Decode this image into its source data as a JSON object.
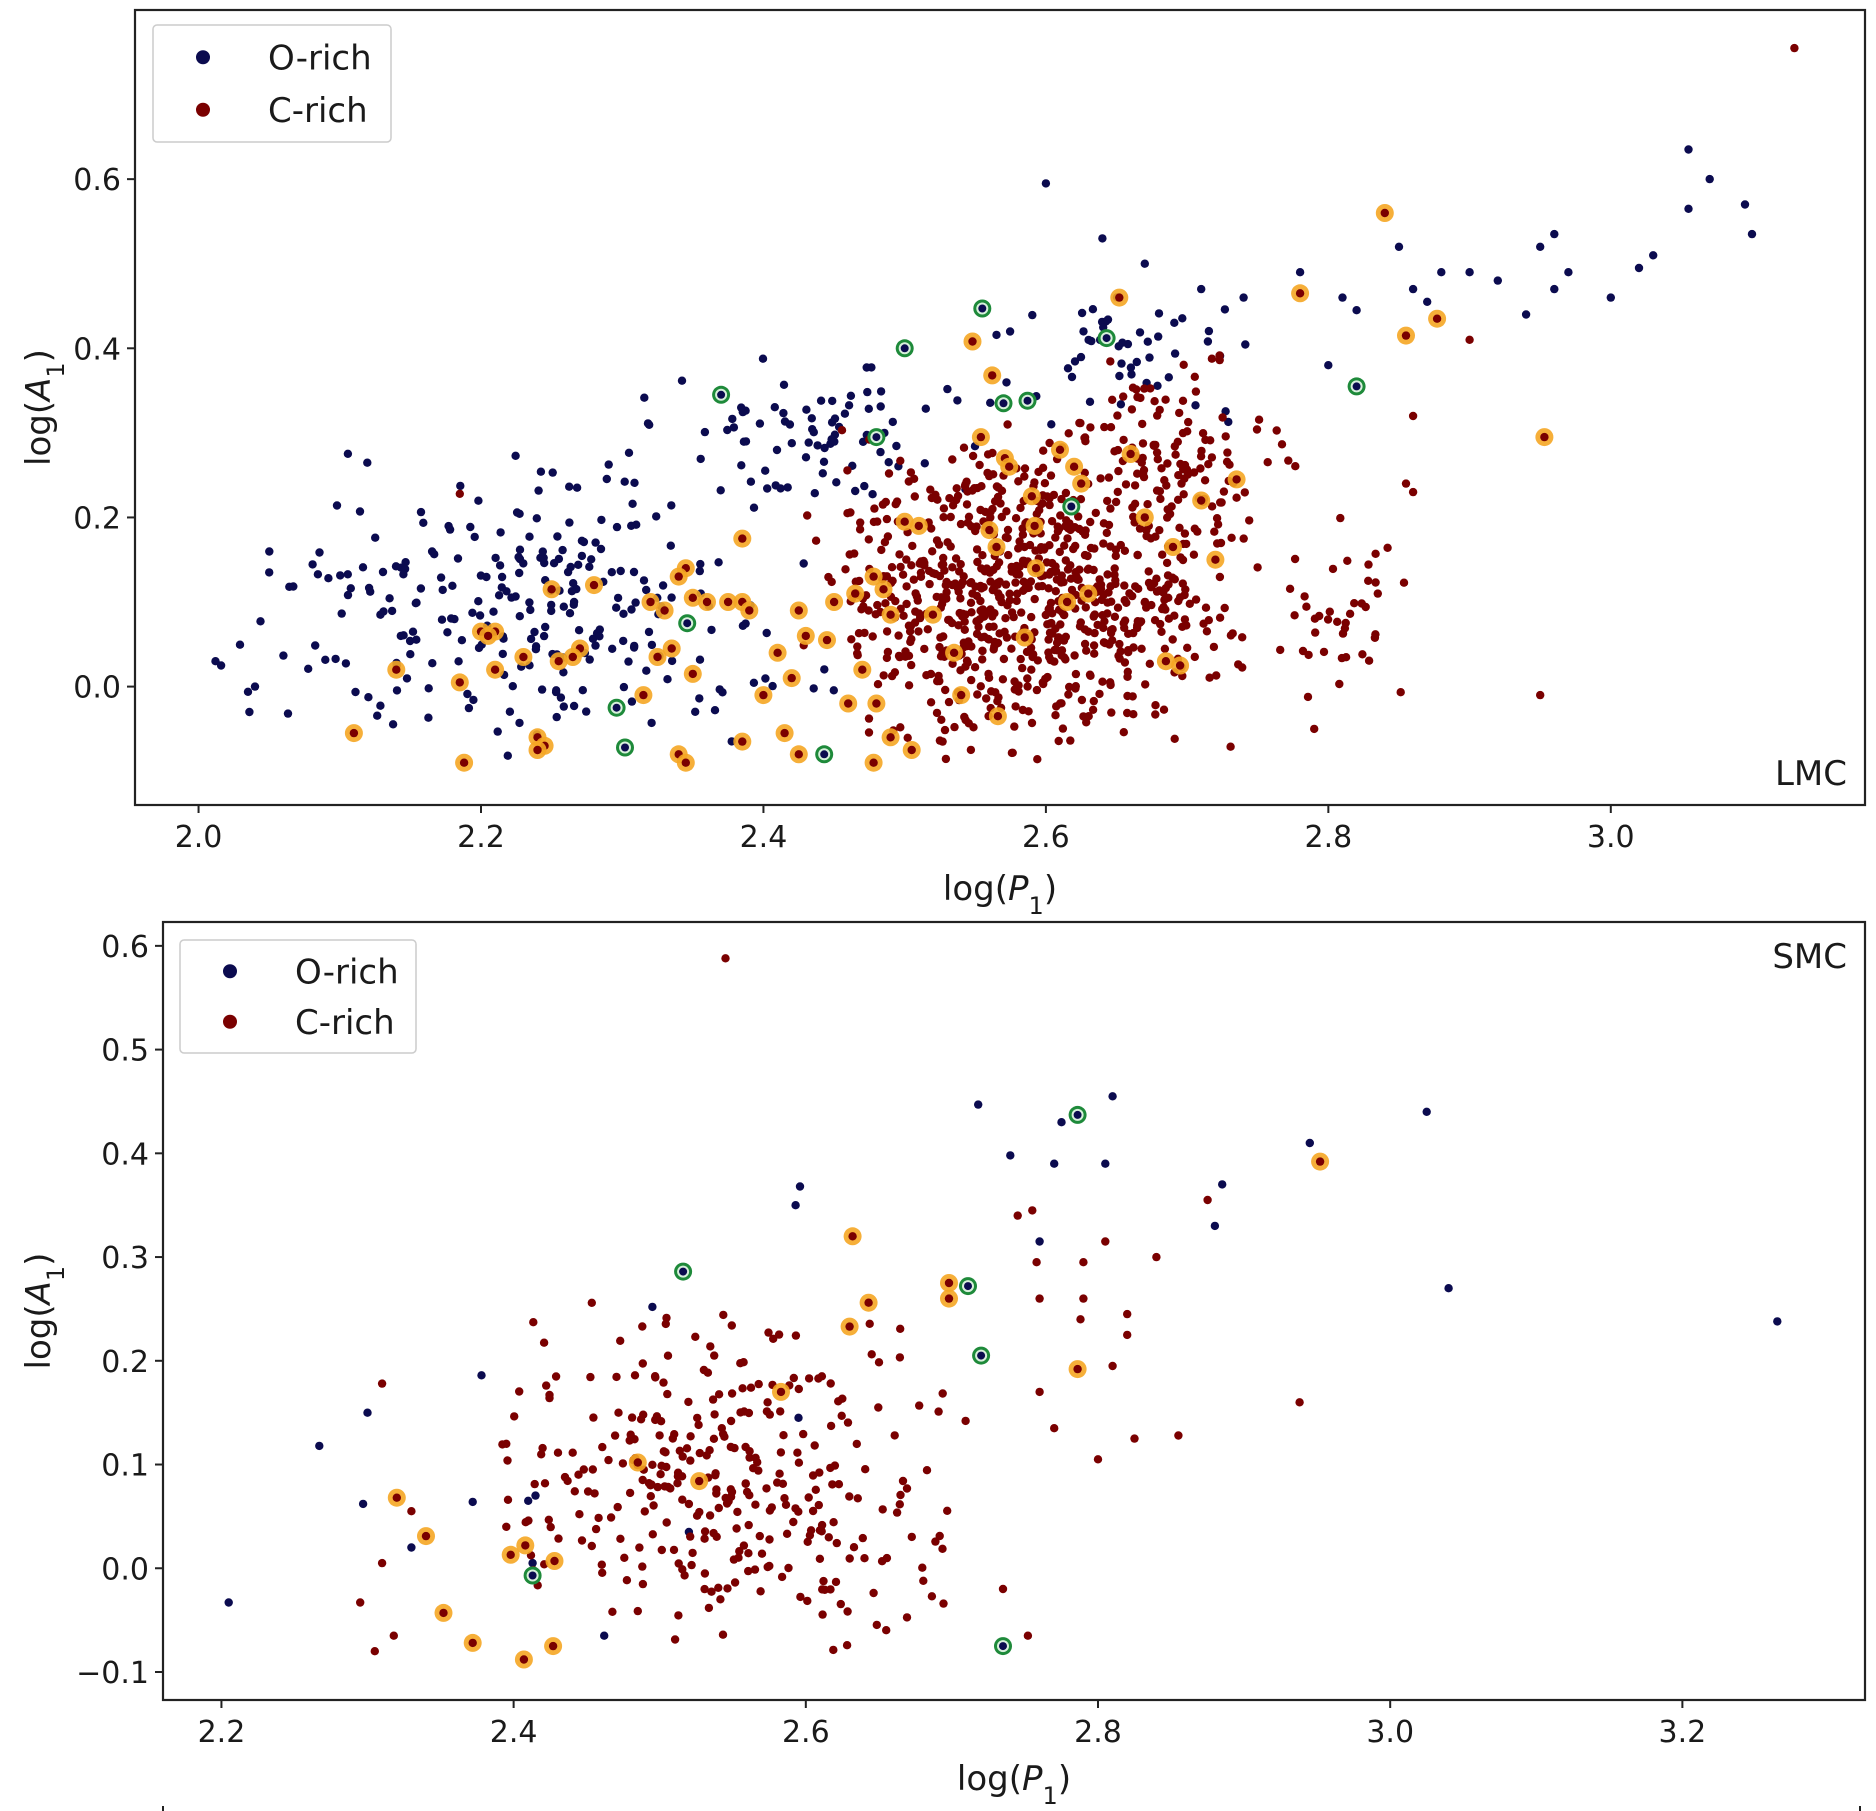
{
  "colors": {
    "o_rich": "#0b0b4f",
    "c_rich": "#7a0000",
    "highlight_orange": "#f5a623",
    "highlight_green": "#1e8a3a"
  },
  "chart_data": [
    {
      "type": "scatter",
      "panel_label": "LMC",
      "xlabel": "log(P1)",
      "ylabel": "log(A1)",
      "xlim": [
        1.955,
        3.18
      ],
      "ylim": [
        -0.14,
        0.8
      ],
      "xticks": [
        "2.0",
        "2.2",
        "2.4",
        "2.6",
        "2.8",
        "3.0"
      ],
      "xtick_values": [
        2.0,
        2.2,
        2.4,
        2.6,
        2.8,
        3.0
      ],
      "yticks": [
        "0.0",
        "0.2",
        "0.4",
        "0.6"
      ],
      "ytick_values": [
        0.0,
        0.2,
        0.4,
        0.6
      ],
      "legend": {
        "position": "top-left",
        "entries": [
          "O-rich",
          "C-rich"
        ]
      },
      "grid": false,
      "series": [
        {
          "name": "O-rich",
          "clusters": [
            {
              "x": [
                2.02,
                2.45
              ],
              "y": [
                -0.09,
                0.28
              ],
              "n": 260
            },
            {
              "x": [
                2.3,
                2.58
              ],
              "y": [
                0.2,
                0.42
              ],
              "n": 80
            },
            {
              "x": [
                2.55,
                2.78
              ],
              "y": [
                0.3,
                0.48
              ],
              "n": 50
            }
          ],
          "points": [
            [
              2.012,
              0.03
            ],
            [
              2.016,
              0.025
            ],
            [
              2.05,
              0.135
            ],
            [
              2.04,
              0.0
            ],
            [
              2.036,
              -0.03
            ],
            [
              2.6,
              0.595
            ],
            [
              2.67,
              0.5
            ],
            [
              2.64,
              0.53
            ],
            [
              2.85,
              0.52
            ],
            [
              2.92,
              0.48
            ],
            [
              2.95,
              0.52
            ],
            [
              2.96,
              0.535
            ],
            [
              2.97,
              0.49
            ],
            [
              3.02,
              0.495
            ],
            [
              3.03,
              0.51
            ],
            [
              3.055,
              0.635
            ],
            [
              3.055,
              0.565
            ],
            [
              3.07,
              0.6
            ],
            [
              3.095,
              0.57
            ],
            [
              3.1,
              0.535
            ],
            [
              2.88,
              0.49
            ],
            [
              2.87,
              0.455
            ],
            [
              2.86,
              0.47
            ],
            [
              2.9,
              0.49
            ],
            [
              2.78,
              0.49
            ],
            [
              2.81,
              0.46
            ],
            [
              2.82,
              0.445
            ],
            [
              2.8,
              0.38
            ],
            [
              2.71,
              0.47
            ],
            [
              2.74,
              0.46
            ],
            [
              2.96,
              0.47
            ],
            [
              2.94,
              0.44
            ],
            [
              3.0,
              0.46
            ]
          ]
        },
        {
          "name": "C-rich",
          "clusters": [
            {
              "x": [
                2.42,
                2.76
              ],
              "y": [
                -0.09,
                0.32
              ],
              "n": 820
            },
            {
              "x": [
                2.6,
                2.78
              ],
              "y": [
                0.2,
                0.4
              ],
              "n": 90
            },
            {
              "x": [
                2.76,
                2.86
              ],
              "y": [
                -0.05,
                0.25
              ],
              "n": 40
            }
          ],
          "points": [
            [
              3.13,
              0.755
            ],
            [
              2.185,
              0.228
            ],
            [
              2.95,
              -0.01
            ],
            [
              2.79,
              -0.05
            ],
            [
              2.9,
              0.41
            ],
            [
              2.86,
              0.23
            ],
            [
              2.855,
              0.24
            ],
            [
              2.835,
              0.11
            ],
            [
              2.86,
              0.32
            ]
          ]
        }
      ],
      "highlighted_orange": [
        [
          2.84,
          0.56
        ],
        [
          2.855,
          0.415
        ],
        [
          2.877,
          0.435
        ],
        [
          2.78,
          0.465
        ],
        [
          2.652,
          0.46
        ],
        [
          2.953,
          0.295
        ],
        [
          2.548,
          0.408
        ],
        [
          2.554,
          0.295
        ],
        [
          2.562,
          0.368
        ],
        [
          2.571,
          0.27
        ],
        [
          2.574,
          0.26
        ],
        [
          2.61,
          0.28
        ],
        [
          2.62,
          0.26
        ],
        [
          2.66,
          0.275
        ],
        [
          2.735,
          0.245
        ],
        [
          2.56,
          0.185
        ],
        [
          2.565,
          0.165
        ],
        [
          2.59,
          0.225
        ],
        [
          2.592,
          0.19
        ],
        [
          2.593,
          0.14
        ],
        [
          2.615,
          0.1
        ],
        [
          2.625,
          0.24
        ],
        [
          2.63,
          0.11
        ],
        [
          2.67,
          0.2
        ],
        [
          2.69,
          0.165
        ],
        [
          2.71,
          0.22
        ],
        [
          2.72,
          0.15
        ],
        [
          2.685,
          0.03
        ],
        [
          2.695,
          0.025
        ],
        [
          2.585,
          0.058
        ],
        [
          2.5,
          0.195
        ],
        [
          2.51,
          0.19
        ],
        [
          2.52,
          0.085
        ],
        [
          2.535,
          0.04
        ],
        [
          2.54,
          -0.01
        ],
        [
          2.566,
          -0.035
        ],
        [
          2.505,
          -0.075
        ],
        [
          2.49,
          -0.06
        ],
        [
          2.478,
          -0.09
        ],
        [
          2.45,
          0.1
        ],
        [
          2.465,
          0.11
        ],
        [
          2.478,
          0.13
        ],
        [
          2.485,
          0.115
        ],
        [
          2.49,
          0.085
        ],
        [
          2.47,
          0.02
        ],
        [
          2.46,
          -0.02
        ],
        [
          2.48,
          -0.02
        ],
        [
          2.445,
          0.055
        ],
        [
          2.425,
          0.09
        ],
        [
          2.43,
          0.06
        ],
        [
          2.41,
          0.04
        ],
        [
          2.42,
          0.01
        ],
        [
          2.4,
          -0.01
        ],
        [
          2.415,
          -0.055
        ],
        [
          2.425,
          -0.08
        ],
        [
          2.385,
          -0.065
        ],
        [
          2.385,
          0.1
        ],
        [
          2.39,
          0.09
        ],
        [
          2.375,
          0.1
        ],
        [
          2.385,
          0.175
        ],
        [
          2.36,
          0.1
        ],
        [
          2.35,
          0.105
        ],
        [
          2.345,
          0.14
        ],
        [
          2.34,
          0.13
        ],
        [
          2.33,
          0.09
        ],
        [
          2.32,
          0.1
        ],
        [
          2.335,
          0.045
        ],
        [
          2.325,
          0.035
        ],
        [
          2.35,
          0.015
        ],
        [
          2.34,
          -0.08
        ],
        [
          2.345,
          -0.09
        ],
        [
          2.315,
          -0.01
        ],
        [
          2.28,
          0.12
        ],
        [
          2.25,
          0.115
        ],
        [
          2.27,
          0.045
        ],
        [
          2.265,
          0.035
        ],
        [
          2.255,
          0.03
        ],
        [
          2.23,
          0.035
        ],
        [
          2.21,
          0.065
        ],
        [
          2.2,
          0.065
        ],
        [
          2.205,
          0.06
        ],
        [
          2.21,
          0.02
        ],
        [
          2.24,
          -0.06
        ],
        [
          2.245,
          -0.07
        ],
        [
          2.14,
          0.02
        ],
        [
          2.185,
          0.005
        ],
        [
          2.11,
          -0.055
        ],
        [
          2.188,
          -0.09
        ],
        [
          2.24,
          -0.075
        ]
      ],
      "highlighted_green": [
        [
          2.37,
          0.345
        ],
        [
          2.48,
          0.295
        ],
        [
          2.5,
          0.4
        ],
        [
          2.555,
          0.447
        ],
        [
          2.57,
          0.335
        ],
        [
          2.587,
          0.338
        ],
        [
          2.643,
          0.412
        ],
        [
          2.618,
          0.213
        ],
        [
          2.82,
          0.355
        ],
        [
          2.346,
          0.075
        ],
        [
          2.296,
          -0.025
        ],
        [
          2.302,
          -0.072
        ],
        [
          2.443,
          -0.08
        ]
      ]
    },
    {
      "type": "scatter",
      "panel_label": "SMC",
      "xlabel": "log(P1)",
      "ylabel": "log(A1)",
      "xlim": [
        2.16,
        3.325
      ],
      "ylim": [
        -0.127,
        0.623
      ],
      "xticks": [
        "2.2",
        "2.4",
        "2.6",
        "2.8",
        "3.0",
        "3.2"
      ],
      "xtick_values": [
        2.2,
        2.4,
        2.6,
        2.8,
        3.0,
        3.2
      ],
      "yticks": [
        "−0.1",
        "0.0",
        "0.1",
        "0.2",
        "0.3",
        "0.4",
        "0.5",
        "0.6"
      ],
      "ytick_values": [
        -0.1,
        0.0,
        0.1,
        0.2,
        0.3,
        0.4,
        0.5,
        0.6
      ],
      "legend": {
        "position": "top-left",
        "entries": [
          "O-rich",
          "C-rich"
        ]
      },
      "grid": false,
      "series": [
        {
          "name": "O-rich",
          "clusters": [],
          "points": [
            [
              2.205,
              -0.033
            ],
            [
              2.267,
              0.118
            ],
            [
              2.3,
              0.15
            ],
            [
              2.297,
              0.062
            ],
            [
              2.33,
              0.02
            ],
            [
              2.372,
              0.064
            ],
            [
              2.378,
              0.186
            ],
            [
              2.41,
              0.065
            ],
            [
              2.415,
              0.07
            ],
            [
              2.413,
              0.005
            ],
            [
              2.462,
              -0.065
            ],
            [
              2.495,
              0.252
            ],
            [
              2.52,
              0.035
            ],
            [
              2.593,
              0.35
            ],
            [
              2.596,
              0.368
            ],
            [
              2.718,
              0.447
            ],
            [
              2.76,
              0.315
            ],
            [
              2.77,
              0.39
            ],
            [
              2.775,
              0.43
            ],
            [
              2.805,
              0.39
            ],
            [
              2.81,
              0.455
            ],
            [
              2.88,
              0.33
            ],
            [
              2.885,
              0.37
            ],
            [
              2.945,
              0.41
            ],
            [
              3.025,
              0.44
            ],
            [
              3.04,
              0.27
            ],
            [
              3.265,
              0.238
            ],
            [
              2.74,
              0.398
            ],
            [
              2.595,
              0.145
            ]
          ]
        },
        {
          "name": "C-rich",
          "clusters": [
            {
              "x": [
                2.38,
                2.72
              ],
              "y": [
                -0.09,
                0.27
              ],
              "n": 330
            }
          ],
          "points": [
            [
              2.545,
              0.588
            ],
            [
              2.31,
              0.178
            ],
            [
              2.31,
              0.005
            ],
            [
              2.295,
              -0.033
            ],
            [
              2.318,
              -0.065
            ],
            [
              2.305,
              -0.08
            ],
            [
              2.33,
              0.055
            ],
            [
              2.395,
              0.12
            ],
            [
              2.395,
              0.04
            ],
            [
              2.745,
              0.34
            ],
            [
              2.755,
              0.345
            ],
            [
              2.79,
              0.295
            ],
            [
              2.788,
              0.24
            ],
            [
              2.79,
              0.26
            ],
            [
              2.82,
              0.245
            ],
            [
              2.82,
              0.225
            ],
            [
              2.805,
              0.315
            ],
            [
              2.81,
              0.195
            ],
            [
              2.84,
              0.3
            ],
            [
              2.875,
              0.355
            ],
            [
              2.855,
              0.128
            ],
            [
              2.825,
              0.125
            ],
            [
              2.8,
              0.105
            ],
            [
              2.938,
              0.16
            ],
            [
              2.76,
              0.26
            ],
            [
              2.758,
              0.295
            ],
            [
              2.77,
              0.135
            ],
            [
              2.752,
              -0.065
            ],
            [
              2.735,
              -0.02
            ],
            [
              2.76,
              0.17
            ]
          ]
        }
      ],
      "highlighted_orange": [
        [
          2.952,
          0.392
        ],
        [
          2.632,
          0.32
        ],
        [
          2.643,
          0.256
        ],
        [
          2.63,
          0.233
        ],
        [
          2.698,
          0.275
        ],
        [
          2.698,
          0.26
        ],
        [
          2.786,
          0.192
        ],
        [
          2.583,
          0.17
        ],
        [
          2.485,
          0.102
        ],
        [
          2.527,
          0.084
        ],
        [
          2.32,
          0.068
        ],
        [
          2.34,
          0.031
        ],
        [
          2.398,
          0.013
        ],
        [
          2.408,
          0.022
        ],
        [
          2.428,
          0.007
        ],
        [
          2.352,
          -0.043
        ],
        [
          2.372,
          -0.072
        ],
        [
          2.407,
          -0.088
        ],
        [
          2.427,
          -0.075
        ]
      ],
      "highlighted_green": [
        [
          2.786,
          0.437
        ],
        [
          2.516,
          0.286
        ],
        [
          2.711,
          0.272
        ],
        [
          2.72,
          0.205
        ],
        [
          2.413,
          -0.007
        ],
        [
          2.735,
          -0.075
        ]
      ]
    }
  ]
}
